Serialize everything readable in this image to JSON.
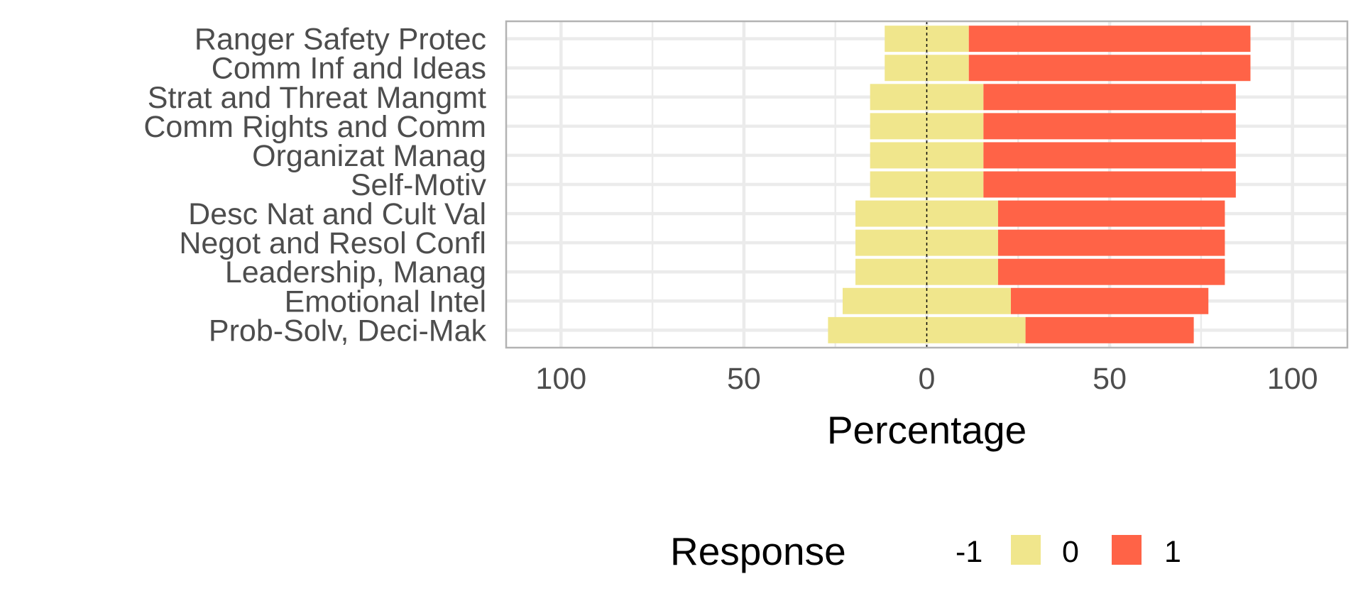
{
  "chart_data": {
    "type": "bar",
    "orientation": "horizontal",
    "stacked": "diverging",
    "categories": [
      "Ranger Safety Protec",
      "Comm Inf and Ideas",
      "Strat and Threat Mangmt",
      "Comm Rights and Comm",
      "Organizat Manag",
      "Self-Motiv",
      "Desc Nat and Cult Val",
      "Negot and Resol Confl",
      "Leadership, Manag",
      "Emotional Intel",
      "Prob-Solv, Deci-Mak"
    ],
    "series": [
      {
        "name": "-1",
        "color": "#f5f5b8",
        "values": [
          0,
          0,
          0,
          0,
          0,
          0,
          0,
          0,
          0,
          0,
          0
        ]
      },
      {
        "name": "0",
        "color": "#f0e68c",
        "values": [
          23,
          23,
          31,
          31,
          31,
          31,
          39,
          39,
          39,
          46,
          54
        ]
      },
      {
        "name": "1",
        "color": "#ff6347",
        "values": [
          77,
          77,
          69,
          69,
          69,
          69,
          62,
          62,
          62,
          54,
          46
        ]
      }
    ],
    "xlabel": "Percentage",
    "ylabel": "",
    "xlim": [
      -115,
      115
    ],
    "xticks": [
      -100,
      -50,
      0,
      50,
      100
    ],
    "xtick_labels": [
      "100",
      "50",
      "0",
      "50",
      "100"
    ],
    "grid": true,
    "legend": {
      "title": "Response",
      "position": "bottom",
      "items": [
        "-1",
        "0",
        "1"
      ]
    },
    "zero_line": true
  }
}
